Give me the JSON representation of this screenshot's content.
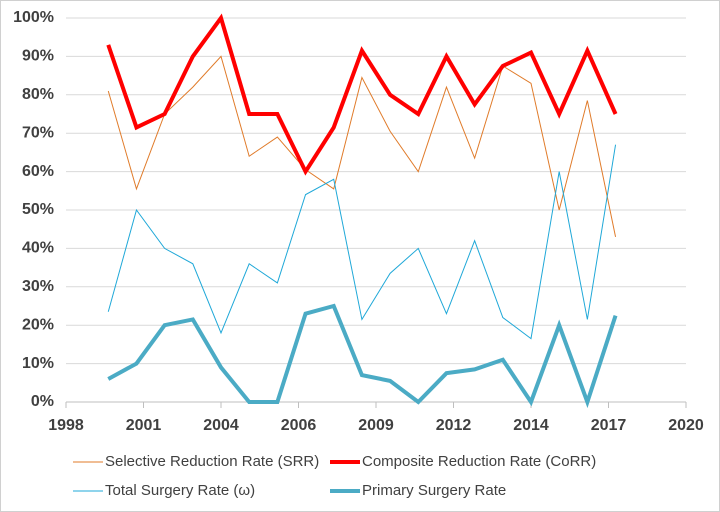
{
  "chart_data": {
    "type": "line",
    "x": [
      1999.5,
      2000.5,
      2001.5,
      2002.5,
      2003.5,
      2004.5,
      2005.5,
      2006.5,
      2007.5,
      2008.5,
      2009.5,
      2010.5,
      2011.5,
      2012.5,
      2013.5,
      2014.5,
      2015.5,
      2016.5,
      2017.5
    ],
    "series": [
      {
        "name": "Selective Reduction Rate (SRR)",
        "color": "#e07b2a",
        "width": 1,
        "values": [
          81,
          55.5,
          75,
          82,
          90,
          64,
          69,
          60.5,
          55.5,
          84.5,
          70.5,
          60,
          82,
          63.5,
          87.5,
          83,
          50,
          78.5,
          43
        ]
      },
      {
        "name": "Composite Reduction Rate (CoRR)",
        "color": "#ff0000",
        "width": 4,
        "values": [
          93,
          71.5,
          75,
          90,
          100,
          75,
          75,
          60,
          71.5,
          91.5,
          80,
          75,
          90,
          77.5,
          87.5,
          91,
          75,
          91.5,
          75
        ]
      },
      {
        "name": "Total Surgery Rate (ω)",
        "color": "#1fa8d8",
        "width": 1,
        "values": [
          23.5,
          50,
          40,
          36,
          18,
          36,
          31,
          54,
          58,
          21.5,
          33.5,
          40,
          23,
          42,
          22,
          16.5,
          60,
          21.5,
          67
        ]
      },
      {
        "name": "Primary Surgery Rate",
        "color": "#4babc5",
        "width": 4,
        "values": [
          6,
          10,
          20,
          21.5,
          9,
          0,
          0,
          23,
          25,
          7,
          5.5,
          0,
          7.5,
          8.5,
          11,
          0,
          20,
          0,
          22.5
        ]
      }
    ],
    "xlim": [
      1998,
      2020
    ],
    "xticks": [
      1998,
      {
        "value": 2000.75,
        "label": "2001"
      },
      {
        "value": 2003.5,
        "label": "2004"
      },
      {
        "value": 2006.25,
        "label": "2006"
      },
      2009,
      {
        "value": 2011.75,
        "label": "2012"
      },
      {
        "value": 2014.5,
        "label": "2014"
      },
      {
        "value": 2017.25,
        "label": "2017"
      },
      2020
    ],
    "ylim": [
      0,
      100
    ],
    "yticks": [
      {
        "value": 0,
        "label": "0%"
      },
      {
        "value": 10,
        "label": "10%"
      },
      {
        "value": 20,
        "label": "20%"
      },
      {
        "value": 30,
        "label": "30%"
      },
      {
        "value": 40,
        "label": "40%"
      },
      {
        "value": 50,
        "label": "50%"
      },
      {
        "value": 60,
        "label": "60%"
      },
      {
        "value": 70,
        "label": "70%"
      },
      {
        "value": 80,
        "label": "80%"
      },
      {
        "value": 90,
        "label": "90%"
      },
      {
        "value": 100,
        "label": "100%"
      }
    ],
    "grid": true,
    "legend": "bottom"
  }
}
